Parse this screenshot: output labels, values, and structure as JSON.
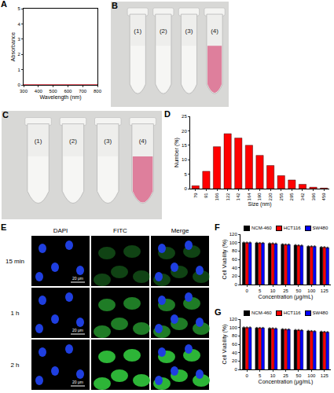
{
  "chart_data": [
    {
      "panel": "A",
      "type": "line",
      "x_label": "Wavelength (nm)",
      "y_label": "Absorbance",
      "x": [
        300,
        350,
        400,
        450,
        500,
        550,
        600,
        650,
        700,
        750,
        800
      ],
      "values": [
        0.02,
        0.02,
        0.02,
        0.02,
        0.02,
        0.02,
        0.02,
        0.02,
        0.02,
        0.02,
        0.02
      ],
      "color": "#e8505b",
      "xlim": [
        300,
        800
      ],
      "xticks": [
        300,
        400,
        500,
        600,
        700,
        800
      ],
      "ylim": [
        0,
        5
      ],
      "yticks": [
        0,
        1,
        2,
        3,
        4,
        5
      ],
      "grid": false
    },
    {
      "panel": "D",
      "type": "bar",
      "x_label": "Size (nm)",
      "y_label": "Number (%)",
      "categories": [
        "79",
        "91",
        "106",
        "122",
        "142",
        "164",
        "190",
        "220",
        "255",
        "295",
        "342",
        "396",
        "459"
      ],
      "values": [
        1,
        6,
        14.5,
        19,
        17.5,
        15,
        11.5,
        8,
        4.5,
        3,
        1.5,
        0.5,
        0.2
      ],
      "color": "#ff0000",
      "ylim": [
        0,
        25
      ],
      "yticks": [
        0,
        5,
        10,
        15,
        20,
        25
      ],
      "grid": false
    },
    {
      "panel": "F",
      "type": "bar",
      "x_label": "Concentration (μg/mL)",
      "y_label": "Cell Viability (%)",
      "categories": [
        "0",
        "5",
        "10",
        "25",
        "50",
        "100",
        "125"
      ],
      "series": [
        {
          "name": "NCM-460",
          "color": "#000000",
          "values": [
            100,
            99.5,
            98,
            96,
            94,
            91,
            89
          ],
          "errors": [
            1.5,
            1.5,
            1.5,
            1.5,
            1.5,
            1.5,
            1.5
          ]
        },
        {
          "name": "HCT116",
          "color": "#ff0000",
          "values": [
            100,
            99,
            98,
            95.5,
            93.5,
            91,
            89
          ],
          "errors": [
            1.5,
            1.5,
            1.5,
            1.5,
            1.5,
            1.5,
            1.5
          ]
        },
        {
          "name": "SW480",
          "color": "#0000ff",
          "values": [
            100,
            99,
            97.5,
            95.5,
            93,
            91,
            88
          ],
          "errors": [
            1.5,
            1.5,
            1.5,
            1.5,
            1.5,
            1.5,
            1.5
          ]
        }
      ],
      "ylim": [
        0,
        120
      ],
      "yticks": [
        0,
        20,
        40,
        60,
        80,
        100,
        120
      ],
      "legend": "top",
      "grid": false
    },
    {
      "panel": "G",
      "type": "bar",
      "x_label": "Concentration (μg/mL)",
      "y_label": "Cell Viability (%)",
      "categories": [
        "0",
        "5",
        "10",
        "25",
        "50",
        "100",
        "125"
      ],
      "series": [
        {
          "name": "NCM-460",
          "color": "#000000",
          "values": [
            100,
            99,
            98,
            96,
            94,
            92,
            90
          ],
          "errors": [
            1.5,
            1.5,
            1.5,
            1.5,
            1.5,
            1.5,
            1.5
          ]
        },
        {
          "name": "HCT116",
          "color": "#ff0000",
          "values": [
            100,
            99,
            98,
            95.5,
            94,
            91.5,
            89.5
          ],
          "errors": [
            1.5,
            1.5,
            1.5,
            1.5,
            1.5,
            1.5,
            1.5
          ]
        },
        {
          "name": "SW480",
          "color": "#0000ff",
          "values": [
            100,
            99,
            97.5,
            95.5,
            93.5,
            91,
            89
          ],
          "errors": [
            1.5,
            1.5,
            1.5,
            1.5,
            1.5,
            1.5,
            1.5
          ]
        }
      ],
      "ylim": [
        0,
        120
      ],
      "yticks": [
        0,
        20,
        40,
        60,
        80,
        100,
        120
      ],
      "legend": "top",
      "grid": false
    }
  ],
  "images": [
    {
      "panel": "B",
      "tubes": [
        "(1)",
        "(2)",
        "(3)",
        "(4)"
      ]
    },
    {
      "panel": "C",
      "tubes": [
        "(1)",
        "(2)",
        "(3)",
        "(4)"
      ]
    },
    {
      "panel": "E",
      "columns": [
        "DAPI",
        "FITC",
        "Merge"
      ],
      "rows": [
        "15 min",
        "1 h",
        "2 h"
      ],
      "scale_bar": "20 μm"
    }
  ]
}
